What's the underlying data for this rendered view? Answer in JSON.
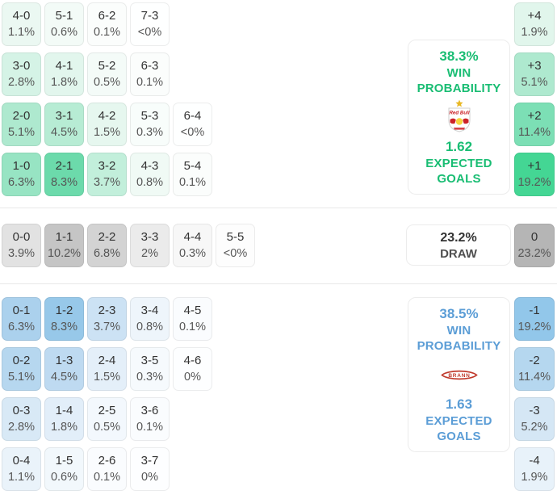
{
  "theme": {
    "home_color": "#19bd73",
    "away_color": "#5b9dd6",
    "draw_value_color": "#333333",
    "score_text_color": "#333333",
    "pct_text_color": "#565656"
  },
  "logos": {
    "home_text": "Red Bull",
    "away_text": "BRANN"
  },
  "chart_data": {
    "type": "heatmap",
    "description": "Correct score probability matrix with win probability, expected goals and goal-difference distribution",
    "labels": {
      "win": [
        "WIN",
        "PROBABILITY"
      ],
      "expected": [
        "EXPECTED",
        "GOALS"
      ]
    },
    "home": {
      "win_probability": "38.3%",
      "expected_goals": "1.62",
      "team": "Red Bull Salzburg",
      "score_rows": [
        [
          {
            "score": "4-0",
            "pct": "1.1%",
            "bg": "#ebf8f2"
          },
          {
            "score": "5-1",
            "pct": "0.6%",
            "bg": "#f3fbf7"
          },
          {
            "score": "6-2",
            "pct": "0.1%",
            "bg": "#fbfdfc"
          },
          {
            "score": "7-3",
            "pct": "<0%",
            "bg": "#feffff"
          }
        ],
        [
          {
            "score": "3-0",
            "pct": "2.8%",
            "bg": "#d5f3e6"
          },
          {
            "score": "4-1",
            "pct": "1.8%",
            "bg": "#e2f6ed"
          },
          {
            "score": "5-2",
            "pct": "0.5%",
            "bg": "#f4fbf8"
          },
          {
            "score": "6-3",
            "pct": "0.1%",
            "bg": "#fbfdfc"
          }
        ],
        [
          {
            "score": "2-0",
            "pct": "5.1%",
            "bg": "#aee9cf"
          },
          {
            "score": "3-1",
            "pct": "4.5%",
            "bg": "#b7ecd4"
          },
          {
            "score": "4-2",
            "pct": "1.5%",
            "bg": "#e6f7ef"
          },
          {
            "score": "5-3",
            "pct": "0.3%",
            "bg": "#f8fdfb"
          },
          {
            "score": "6-4",
            "pct": "<0%",
            "bg": "#feffff"
          }
        ],
        [
          {
            "score": "1-0",
            "pct": "6.3%",
            "bg": "#97e4c3"
          },
          {
            "score": "2-1",
            "pct": "8.3%",
            "bg": "#6cdaab"
          },
          {
            "score": "3-2",
            "pct": "3.7%",
            "bg": "#c2efdb"
          },
          {
            "score": "4-3",
            "pct": "0.8%",
            "bg": "#f0faf5"
          },
          {
            "score": "5-4",
            "pct": "0.1%",
            "bg": "#fbfdfc"
          }
        ]
      ],
      "goal_diff": [
        {
          "diff": "+4",
          "pct": "1.9%",
          "bg": "#e1f6ec"
        },
        {
          "diff": "+3",
          "pct": "5.1%",
          "bg": "#aee9cf"
        },
        {
          "diff": "+2",
          "pct": "11.4%",
          "bg": "#7cdfb5"
        },
        {
          "diff": "+1",
          "pct": "19.2%",
          "bg": "#44d694"
        }
      ]
    },
    "draw": {
      "probability": "23.2%",
      "label": "DRAW",
      "score_rows": [
        [
          {
            "score": "0-0",
            "pct": "3.9%",
            "bg": "#e2e2e2"
          },
          {
            "score": "1-1",
            "pct": "10.2%",
            "bg": "#c5c5c5"
          },
          {
            "score": "2-2",
            "pct": "6.8%",
            "bg": "#d3d3d3"
          },
          {
            "score": "3-3",
            "pct": "2%",
            "bg": "#ebebeb"
          },
          {
            "score": "4-4",
            "pct": "0.3%",
            "bg": "#f7f7f7"
          },
          {
            "score": "5-5",
            "pct": "<0%",
            "bg": "#fdfdfd"
          }
        ]
      ],
      "goal_diff": [
        {
          "diff": "0",
          "pct": "23.2%",
          "bg": "#b5b5b5"
        }
      ]
    },
    "away": {
      "win_probability": "38.5%",
      "expected_goals": "1.63",
      "team": "Brann",
      "score_rows": [
        [
          {
            "score": "0-1",
            "pct": "6.3%",
            "bg": "#abd1ed"
          },
          {
            "score": "1-2",
            "pct": "8.3%",
            "bg": "#97c8e9"
          },
          {
            "score": "2-3",
            "pct": "3.7%",
            "bg": "#cce2f4"
          },
          {
            "score": "3-4",
            "pct": "0.8%",
            "bg": "#eef5fb"
          },
          {
            "score": "4-5",
            "pct": "0.1%",
            "bg": "#fafcfe"
          }
        ],
        [
          {
            "score": "0-2",
            "pct": "5.1%",
            "bg": "#b6d7ef"
          },
          {
            "score": "1-3",
            "pct": "4.5%",
            "bg": "#bedaf1"
          },
          {
            "score": "2-4",
            "pct": "1.5%",
            "bg": "#e4eff9"
          },
          {
            "score": "3-5",
            "pct": "0.3%",
            "bg": "#f6fafd"
          },
          {
            "score": "4-6",
            "pct": "0%",
            "bg": "#fdfeff"
          }
        ],
        [
          {
            "score": "0-3",
            "pct": "2.8%",
            "bg": "#d8e9f6"
          },
          {
            "score": "1-4",
            "pct": "1.8%",
            "bg": "#e2eef9"
          },
          {
            "score": "2-5",
            "pct": "0.5%",
            "bg": "#f3f8fd"
          },
          {
            "score": "3-6",
            "pct": "0.1%",
            "bg": "#fafcfe"
          }
        ],
        [
          {
            "score": "0-4",
            "pct": "1.1%",
            "bg": "#eaf3fa"
          },
          {
            "score": "1-5",
            "pct": "0.6%",
            "bg": "#f2f8fc"
          },
          {
            "score": "2-6",
            "pct": "0.1%",
            "bg": "#fafcfe"
          },
          {
            "score": "3-7",
            "pct": "0%",
            "bg": "#fdfeff"
          }
        ]
      ],
      "goal_diff": [
        {
          "diff": "-1",
          "pct": "19.2%",
          "bg": "#92c7ea"
        },
        {
          "diff": "-2",
          "pct": "11.4%",
          "bg": "#b5d7ef"
        },
        {
          "diff": "-3",
          "pct": "5.2%",
          "bg": "#d5e7f5"
        },
        {
          "diff": "-4",
          "pct": "1.9%",
          "bg": "#e8f2fa"
        }
      ]
    }
  }
}
